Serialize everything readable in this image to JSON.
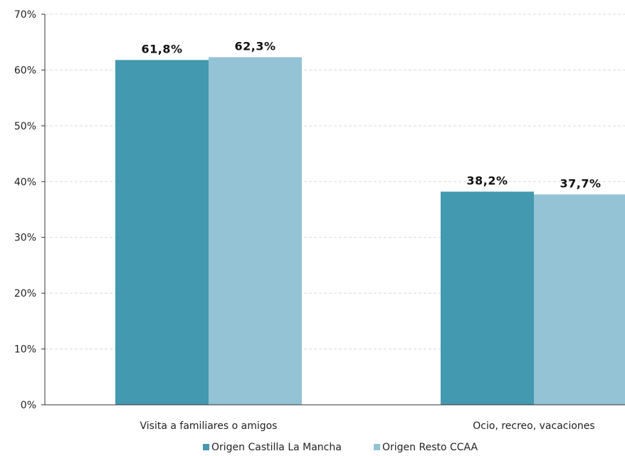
{
  "chart_data": {
    "type": "bar",
    "categories": [
      "Visita a familiares o amigos",
      "Ocio, recreo, vacaciones"
    ],
    "series": [
      {
        "name": "Origen Castilla La Mancha",
        "values": [
          61.8,
          38.2
        ],
        "labels": [
          "61,8%",
          "38,2%"
        ],
        "color": "#4399B0"
      },
      {
        "name": "Origen Resto CCAA",
        "values": [
          62.3,
          37.7
        ],
        "labels": [
          "62,3%",
          "37,7%"
        ],
        "color": "#93C3D4"
      }
    ],
    "ylim": [
      0,
      70
    ],
    "yticks": [
      0,
      10,
      20,
      30,
      40,
      50,
      60,
      70
    ],
    "ytick_labels": [
      "0%",
      "10%",
      "20%",
      "30%",
      "40%",
      "50%",
      "60%",
      "70%"
    ],
    "grid": true,
    "grid_color": "#d9d9d9",
    "legend_position": "bottom"
  }
}
